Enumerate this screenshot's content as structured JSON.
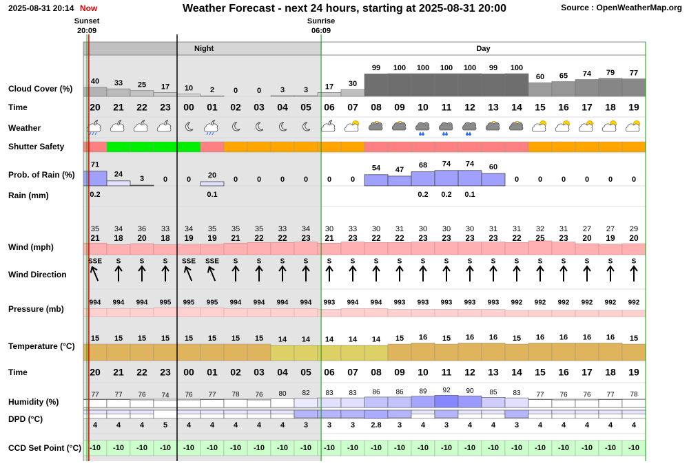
{
  "header": {
    "timestamp": "2025-08-31 20:14",
    "now": "Now",
    "title": "Weather Forecast - next 24 hours, starting at 2025-08-31 20:00",
    "source": "Source : OpenWeatherMap.org"
  },
  "sunset": {
    "label": "Sunset",
    "time": "20:09"
  },
  "sunrise": {
    "label": "Sunrise",
    "time": "06:09"
  },
  "periods": {
    "night": "Night",
    "day": "Day"
  },
  "hours": [
    "20",
    "21",
    "22",
    "23",
    "00",
    "01",
    "02",
    "03",
    "04",
    "05",
    "06",
    "07",
    "08",
    "09",
    "10",
    "11",
    "12",
    "13",
    "14",
    "15",
    "16",
    "17",
    "18",
    "19"
  ],
  "rows": {
    "cloud_cover": {
      "label": "Cloud Cover (%)",
      "values": [
        40,
        33,
        25,
        17,
        10,
        2,
        0,
        0,
        3,
        3,
        17,
        30,
        99,
        100,
        100,
        100,
        100,
        99,
        100,
        60,
        65,
        74,
        79,
        77
      ]
    },
    "time": {
      "label": "Time"
    },
    "weather": {
      "label": "Weather"
    },
    "shutter_safety": {
      "label": "Shutter Safety",
      "colors": [
        "#ff8080",
        "#00ee00",
        "#00ee00",
        "#00ee00",
        "#00ee00",
        "#ff8080",
        "#ffa500",
        "#ffa500",
        "#ffa500",
        "#ffa500",
        "#ffa500",
        "#ffa500",
        "#ff8080",
        "#ff8080",
        "#ff8080",
        "#ff8080",
        "#ff8080",
        "#ff8080",
        "#ff8080",
        "#ffa500",
        "#ffa500",
        "#ffa500",
        "#ffa500",
        "#ffa500"
      ]
    },
    "rain_probability": {
      "label": "Prob. of Rain (%)",
      "values": [
        71,
        24,
        3,
        0,
        0,
        20,
        0,
        0,
        0,
        0,
        0,
        0,
        54,
        47,
        68,
        74,
        74,
        60,
        0,
        0,
        0,
        0,
        0,
        0
      ]
    },
    "rain": {
      "label": "Rain (mm)",
      "values": [
        0.2,
        null,
        null,
        null,
        null,
        0.1,
        null,
        null,
        null,
        null,
        null,
        null,
        null,
        null,
        0.2,
        0.2,
        0.1,
        null,
        null,
        null,
        null,
        null,
        null,
        null
      ]
    },
    "wind": {
      "label": "Wind (mph)",
      "gust": [
        35,
        34,
        36,
        33,
        34,
        35,
        35,
        35,
        33,
        34,
        30,
        33,
        30,
        31,
        30,
        30,
        30,
        31,
        31,
        32,
        31,
        27,
        27,
        29
      ],
      "speed": [
        21,
        18,
        20,
        18,
        19,
        19,
        21,
        22,
        22,
        23,
        21,
        23,
        22,
        22,
        23,
        23,
        23,
        23,
        22,
        25,
        23,
        20,
        19,
        20
      ]
    },
    "wind_direction": {
      "label": "Wind Direction",
      "values": [
        "SSE",
        "S",
        "S",
        "S",
        "SSE",
        "SSE",
        "S",
        "S",
        "S",
        "S",
        "S",
        "S",
        "S",
        "S",
        "S",
        "S",
        "S",
        "S",
        "S",
        "S",
        "S",
        "S",
        "S",
        "S"
      ]
    },
    "pressure": {
      "label": "Pressure (mb)",
      "values": [
        994,
        994,
        994,
        995,
        995,
        995,
        994,
        994,
        994,
        994,
        993,
        994,
        994,
        993,
        993,
        993,
        993,
        993,
        992,
        992,
        992,
        992,
        992,
        992
      ]
    },
    "temperature": {
      "label": "Temperature (°C)",
      "values": [
        15,
        15,
        15,
        15,
        15,
        15,
        15,
        15,
        14,
        14,
        14,
        14,
        14,
        15,
        16,
        15,
        16,
        16,
        15,
        16,
        16,
        16,
        16,
        15
      ]
    },
    "humidity": {
      "label": "Humidity (%)",
      "values": [
        77,
        77,
        76,
        74,
        76,
        77,
        78,
        76,
        80,
        82,
        83,
        83,
        86,
        86,
        89,
        92,
        90,
        85,
        83,
        77,
        76,
        76,
        77,
        78
      ]
    },
    "dpd": {
      "label": "DPD (°C)",
      "values": [
        4,
        4,
        4,
        5,
        4,
        4,
        4,
        4,
        4,
        3,
        3,
        3,
        2.8,
        3,
        4,
        3,
        4,
        4,
        3,
        4,
        4,
        4,
        4,
        4
      ]
    },
    "ccd_set_point": {
      "label": "CCD Set Point (°C)",
      "values": [
        -10,
        -10,
        -10,
        -10,
        -10,
        -10,
        -10,
        -10,
        -10,
        -10,
        -10,
        -10,
        -10,
        -10,
        -10,
        -10,
        -10,
        -10,
        -10,
        -10,
        -10,
        -10,
        -10,
        -10
      ]
    }
  }
}
